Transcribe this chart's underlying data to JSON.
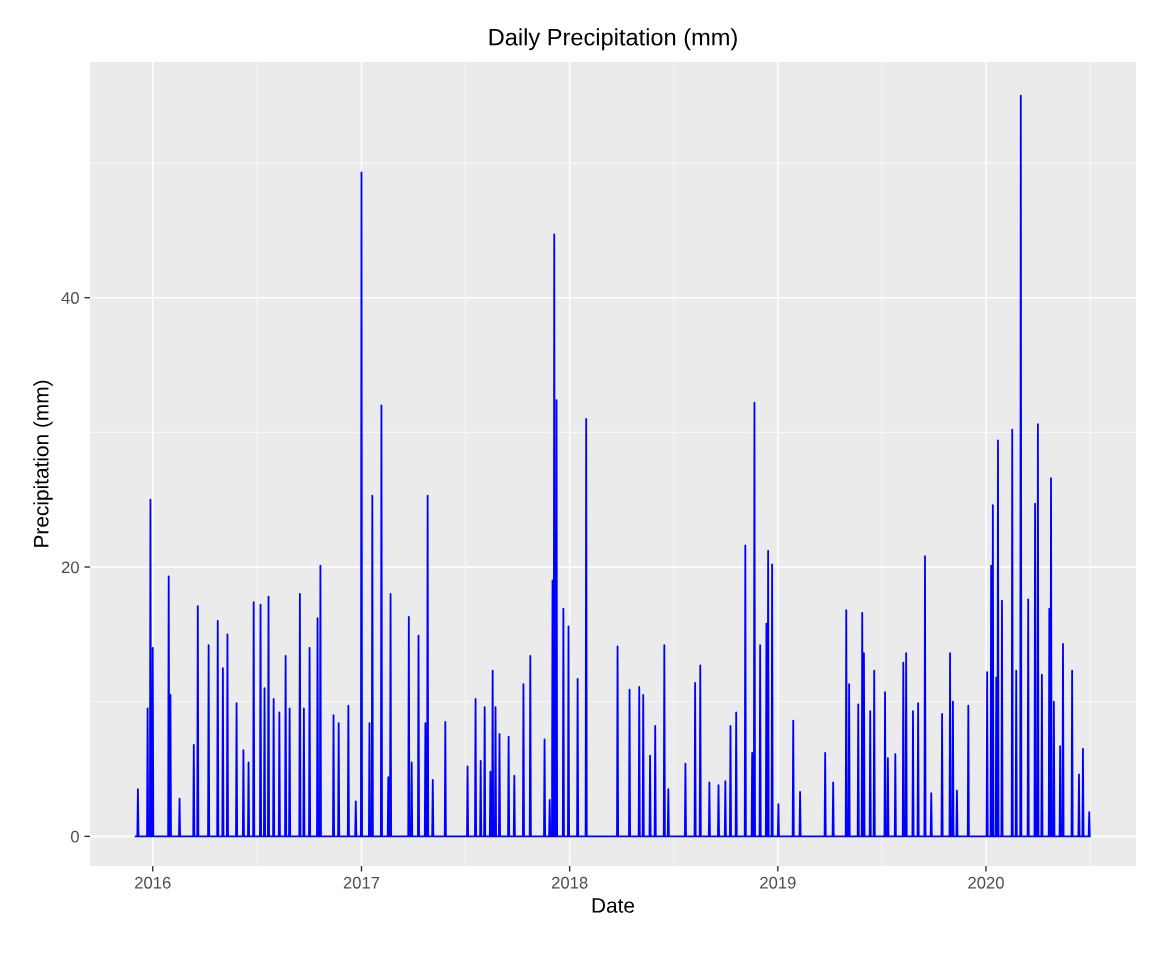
{
  "chart_data": {
    "type": "line",
    "title": "Daily Precipitation (mm)",
    "xlabel": "Date",
    "ylabel": "Precipitation (mm)",
    "xlim": [
      "2015-09-13",
      "2020-09-20"
    ],
    "ylim": [
      -2.2,
      57.5
    ],
    "xticks": [
      {
        "value": "2016-01-01",
        "label": "2016"
      },
      {
        "value": "2017-01-01",
        "label": "2017"
      },
      {
        "value": "2018-01-01",
        "label": "2018"
      },
      {
        "value": "2019-01-01",
        "label": "2019"
      },
      {
        "value": "2020-01-01",
        "label": "2020"
      }
    ],
    "yticks": [
      0,
      20,
      40
    ],
    "grid": true,
    "marker": "none",
    "line_style": "solid",
    "series": [
      {
        "color": "#0000ff",
        "x": [
          "2015-12-02",
          "2015-12-05",
          "2015-12-06",
          "2015-12-07",
          "2015-12-22",
          "2015-12-23",
          "2015-12-24",
          "2015-12-27",
          "2015-12-28",
          "2015-12-29",
          "2015-12-31",
          "2016-01-01",
          "2016-01-02",
          "2016-01-28",
          "2016-01-29",
          "2016-01-30",
          "2016-01-31",
          "2016-02-01",
          "2016-02-02",
          "2016-02-16",
          "2016-02-17",
          "2016-02-18",
          "2016-03-12",
          "2016-03-13",
          "2016-03-14",
          "2016-03-19",
          "2016-03-20",
          "2016-03-21",
          "2016-04-07",
          "2016-04-08",
          "2016-04-09",
          "2016-04-23",
          "2016-04-24",
          "2016-04-25",
          "2016-05-02",
          "2016-05-03",
          "2016-05-04",
          "2016-05-10",
          "2016-05-11",
          "2016-05-12",
          "2016-05-26",
          "2016-05-27",
          "2016-05-28",
          "2016-06-07",
          "2016-06-08",
          "2016-06-09",
          "2016-06-16",
          "2016-06-17",
          "2016-06-18",
          "2016-06-25",
          "2016-06-26",
          "2016-06-27",
          "2016-07-07",
          "2016-07-08",
          "2016-07-09",
          "2016-07-14",
          "2016-07-15",
          "2016-07-16",
          "2016-07-21",
          "2016-07-22",
          "2016-07-23",
          "2016-07-30",
          "2016-07-31",
          "2016-08-01",
          "2016-08-09",
          "2016-08-10",
          "2016-08-11",
          "2016-08-20",
          "2016-08-21",
          "2016-08-22",
          "2016-08-27",
          "2016-08-28",
          "2016-08-29",
          "2016-09-14",
          "2016-09-15",
          "2016-09-16",
          "2016-09-21",
          "2016-09-22",
          "2016-09-23",
          "2016-10-01",
          "2016-10-02",
          "2016-10-03",
          "2016-10-15",
          "2016-10-16",
          "2016-10-17",
          "2016-10-20",
          "2016-10-21",
          "2016-10-22",
          "2016-11-12",
          "2016-11-13",
          "2016-11-14",
          "2016-11-21",
          "2016-11-22",
          "2016-11-23",
          "2016-12-08",
          "2016-12-09",
          "2016-12-10",
          "2016-12-21",
          "2016-12-22",
          "2016-12-23",
          "2016-12-31",
          "2017-01-01",
          "2017-01-02",
          "2017-01-14",
          "2017-01-15",
          "2017-01-16",
          "2017-01-19",
          "2017-01-20",
          "2017-01-21",
          "2017-02-04",
          "2017-02-05",
          "2017-02-06",
          "2017-02-16",
          "2017-02-17",
          "2017-02-18",
          "2017-02-20",
          "2017-02-21",
          "2017-02-22",
          "2017-03-24",
          "2017-03-25",
          "2017-03-26",
          "2017-03-29",
          "2017-03-30",
          "2017-03-31",
          "2017-04-10",
          "2017-04-11",
          "2017-04-12",
          "2017-04-22",
          "2017-04-23",
          "2017-04-24",
          "2017-04-26",
          "2017-04-27",
          "2017-04-28",
          "2017-05-05",
          "2017-05-06",
          "2017-05-07",
          "2017-05-27",
          "2017-05-28",
          "2017-05-29",
          "2017-07-05",
          "2017-07-06",
          "2017-07-07",
          "2017-07-19",
          "2017-07-20",
          "2017-07-21",
          "2017-07-28",
          "2017-07-29",
          "2017-07-30",
          "2017-08-04",
          "2017-08-05",
          "2017-08-06",
          "2017-08-14",
          "2017-08-15",
          "2017-08-16",
          "2017-08-18",
          "2017-08-19",
          "2017-08-20",
          "2017-08-23",
          "2017-08-24",
          "2017-08-25",
          "2017-08-30",
          "2017-08-31",
          "2017-09-01",
          "2017-09-15",
          "2017-09-16",
          "2017-09-17",
          "2017-09-25",
          "2017-09-26",
          "2017-09-27",
          "2017-10-11",
          "2017-10-12",
          "2017-10-13",
          "2017-10-23",
          "2017-10-24",
          "2017-10-25",
          "2017-11-17",
          "2017-11-18",
          "2017-11-19",
          "2017-11-26",
          "2017-11-27",
          "2017-11-28",
          "2017-12-01",
          "2017-12-02",
          "2017-12-03",
          "2017-12-04",
          "2017-12-05",
          "2017-12-06",
          "2017-12-08",
          "2017-12-09",
          "2017-12-10",
          "2017-12-20",
          "2017-12-21",
          "2017-12-22",
          "2017-12-29",
          "2017-12-30",
          "2017-12-31",
          "2018-01-14",
          "2018-01-15",
          "2018-01-16",
          "2018-01-29",
          "2018-01-30",
          "2018-01-31",
          "2018-03-25",
          "2018-03-26",
          "2018-03-27",
          "2018-04-15",
          "2018-04-16",
          "2018-04-17",
          "2018-05-02",
          "2018-05-03",
          "2018-05-04",
          "2018-05-09",
          "2018-05-10",
          "2018-05-11",
          "2018-05-21",
          "2018-05-22",
          "2018-05-23",
          "2018-05-30",
          "2018-05-31",
          "2018-06-01",
          "2018-06-15",
          "2018-06-16",
          "2018-06-17",
          "2018-06-22",
          "2018-06-23",
          "2018-06-24",
          "2018-07-22",
          "2018-07-23",
          "2018-07-24",
          "2018-08-08",
          "2018-08-09",
          "2018-08-10",
          "2018-08-17",
          "2018-08-18",
          "2018-08-19",
          "2018-09-02",
          "2018-09-03",
          "2018-09-04",
          "2018-09-18",
          "2018-09-19",
          "2018-09-20",
          "2018-09-30",
          "2018-10-01",
          "2018-10-02",
          "2018-10-09",
          "2018-10-10",
          "2018-10-11",
          "2018-10-19",
          "2018-10-20",
          "2018-10-21",
          "2018-11-04",
          "2018-11-05",
          "2018-11-06",
          "2018-11-16",
          "2018-11-17",
          "2018-11-18",
          "2018-11-20",
          "2018-11-21",
          "2018-11-22",
          "2018-11-30",
          "2018-12-01",
          "2018-12-02",
          "2018-12-11",
          "2018-12-12",
          "2018-12-13",
          "2018-12-14",
          "2018-12-15",
          "2018-12-16",
          "2018-12-21",
          "2018-12-22",
          "2018-12-23",
          "2019-01-01",
          "2019-01-02",
          "2019-01-03",
          "2019-01-27",
          "2019-01-28",
          "2019-01-29",
          "2019-02-08",
          "2019-02-09",
          "2019-02-10",
          "2019-03-24",
          "2019-03-25",
          "2019-03-26",
          "2019-04-07",
          "2019-04-08",
          "2019-04-09",
          "2019-04-30",
          "2019-05-01",
          "2019-05-02",
          "2019-05-05",
          "2019-05-06",
          "2019-05-07",
          "2019-05-21",
          "2019-05-22",
          "2019-05-23",
          "2019-05-28",
          "2019-05-29",
          "2019-05-30",
          "2019-05-31",
          "2019-06-01",
          "2019-06-02",
          "2019-06-11",
          "2019-06-12",
          "2019-06-13",
          "2019-06-18",
          "2019-06-19",
          "2019-06-20",
          "2019-07-07",
          "2019-07-08",
          "2019-07-09",
          "2019-07-12",
          "2019-07-13",
          "2019-07-14",
          "2019-07-25",
          "2019-07-26",
          "2019-07-27",
          "2019-08-08",
          "2019-08-09",
          "2019-08-10",
          "2019-08-13",
          "2019-08-14",
          "2019-08-15",
          "2019-08-25",
          "2019-08-26",
          "2019-08-27",
          "2019-09-03",
          "2019-09-04",
          "2019-09-05",
          "2019-09-15",
          "2019-09-16",
          "2019-09-17",
          "2019-09-26",
          "2019-09-27",
          "2019-09-28",
          "2019-10-15",
          "2019-10-16",
          "2019-10-17",
          "2019-10-29",
          "2019-10-30",
          "2019-10-31",
          "2019-11-03",
          "2019-11-04",
          "2019-11-05",
          "2019-11-10",
          "2019-11-11",
          "2019-11-12",
          "2019-11-30",
          "2019-12-01",
          "2019-12-02",
          "2020-01-02",
          "2020-01-03",
          "2020-01-04",
          "2020-01-09",
          "2020-01-10",
          "2020-01-11",
          "2020-01-12",
          "2020-01-13",
          "2020-01-14",
          "2020-01-18",
          "2020-01-19",
          "2020-01-20",
          "2020-01-21",
          "2020-01-22",
          "2020-01-23",
          "2020-01-28",
          "2020-01-29",
          "2020-01-30",
          "2020-02-15",
          "2020-02-16",
          "2020-02-17",
          "2020-02-22",
          "2020-02-23",
          "2020-02-24",
          "2020-03-01",
          "2020-03-02",
          "2020-03-03",
          "2020-03-14",
          "2020-03-15",
          "2020-03-16",
          "2020-03-26",
          "2020-03-27",
          "2020-03-28",
          "2020-03-31",
          "2020-04-01",
          "2020-04-02",
          "2020-04-07",
          "2020-04-08",
          "2020-04-09",
          "2020-04-20",
          "2020-04-21",
          "2020-04-22",
          "2020-04-23",
          "2020-04-24",
          "2020-04-25",
          "2020-04-28",
          "2020-04-29",
          "2020-04-30",
          "2020-05-09",
          "2020-05-10",
          "2020-05-11",
          "2020-05-14",
          "2020-05-15",
          "2020-05-16",
          "2020-05-30",
          "2020-05-31",
          "2020-06-01",
          "2020-06-11",
          "2020-06-12",
          "2020-06-13",
          "2020-06-18",
          "2020-06-19",
          "2020-06-20",
          "2020-06-29",
          "2020-06-30",
          "2020-07-01"
        ],
        "values": [
          0,
          0,
          3.5,
          0,
          0,
          9.5,
          0,
          0,
          25,
          0,
          0,
          14,
          0,
          0,
          19.3,
          0,
          0,
          10.5,
          0,
          0,
          2.8,
          0,
          0,
          6.8,
          0,
          0,
          17.1,
          0,
          0,
          14.2,
          0,
          0,
          16,
          0,
          0,
          12.5,
          0,
          0,
          15,
          0,
          0,
          9.9,
          0,
          0,
          6.4,
          0,
          0,
          5.5,
          0,
          0,
          17.4,
          0,
          0,
          17.2,
          0,
          0,
          11,
          0,
          0,
          17.8,
          0,
          0,
          10.2,
          0,
          0,
          9.2,
          0,
          0,
          13.4,
          0,
          0,
          9.5,
          0,
          0,
          18,
          0,
          0,
          9.5,
          0,
          0,
          14,
          0,
          0,
          16.2,
          0,
          0,
          20.1,
          0,
          0,
          9,
          0,
          0,
          8.4,
          0,
          0,
          9.7,
          0,
          0,
          2.6,
          0,
          0,
          49.3,
          0,
          0,
          8.4,
          0,
          0,
          25.3,
          0,
          0,
          32,
          0,
          0,
          4.4,
          0,
          0,
          18,
          0,
          0,
          16.3,
          0,
          0,
          5.5,
          0,
          0,
          14.9,
          0,
          0,
          8.4,
          0,
          0,
          25.3,
          0,
          0,
          4.2,
          0,
          0,
          8.5,
          0,
          0,
          5.2,
          0,
          0,
          10.2,
          0,
          0,
          5.6,
          0,
          0,
          9.6,
          0,
          0,
          4.8,
          0,
          0,
          12.3,
          0,
          0,
          9.6,
          0,
          0,
          7.6,
          0,
          0,
          7.4,
          0,
          0,
          4.5,
          0,
          0,
          11.3,
          0,
          0,
          13.4,
          0,
          0,
          7.2,
          0,
          0,
          2.7,
          0,
          0,
          19,
          0,
          0,
          44.7,
          0,
          0,
          32.4,
          0,
          0,
          16.9,
          0,
          0,
          15.6,
          0,
          0,
          11.7,
          0,
          0,
          31,
          0,
          0,
          14.1,
          0,
          0,
          10.9,
          0,
          0,
          11.1,
          0,
          0,
          10.5,
          0,
          0,
          6,
          0,
          0,
          8.2,
          0,
          0,
          14.2,
          0,
          0,
          3.5,
          0,
          0,
          5.4,
          0,
          0,
          11.4,
          0,
          0,
          12.7,
          0,
          0,
          4,
          0,
          0,
          3.8,
          0,
          0,
          4.1,
          0,
          0,
          8.2,
          0,
          0,
          9.2,
          0,
          0,
          21.6,
          0,
          0,
          6.2,
          0,
          0,
          32.2,
          0,
          0,
          14.2,
          0,
          0,
          15.8,
          0,
          0,
          21.2,
          0,
          0,
          20.2,
          0,
          0,
          2.4,
          0,
          0,
          8.6,
          0,
          0,
          3.3,
          0,
          0,
          6.2,
          0,
          0,
          4,
          0,
          0,
          16.8,
          0,
          0,
          11.3,
          0,
          0,
          9.8,
          0,
          0,
          16.6,
          0,
          0,
          13.6,
          0,
          0,
          9.3,
          0,
          0,
          12.3,
          0,
          0,
          10.7,
          0,
          0,
          5.8,
          0,
          0,
          6.1,
          0,
          0,
          12.9,
          0,
          0,
          13.6,
          0,
          0,
          9.3,
          0,
          0,
          9.9,
          0,
          0,
          20.8,
          0,
          0,
          3.2,
          0,
          0,
          9.1,
          0,
          0,
          13.6,
          0,
          0,
          10,
          0,
          0,
          3.4,
          0,
          0,
          9.7,
          0,
          0,
          12.2,
          0,
          0,
          20.1,
          0,
          0,
          24.6,
          0,
          0,
          11.8,
          0,
          0,
          29.4,
          0,
          0,
          17.5,
          0,
          0,
          30.2,
          0,
          0,
          12.3,
          0,
          0,
          55,
          0,
          0,
          17.6,
          0,
          0,
          24.7,
          0,
          0,
          30.6,
          0,
          0,
          12,
          0,
          0,
          16.9,
          0,
          0,
          26.6,
          0,
          0,
          10,
          0,
          0,
          6.7,
          0,
          0,
          14.3,
          0,
          0,
          12.3,
          0,
          0,
          4.6,
          0,
          0,
          6.5,
          0,
          0,
          1.8,
          0
        ]
      }
    ]
  }
}
